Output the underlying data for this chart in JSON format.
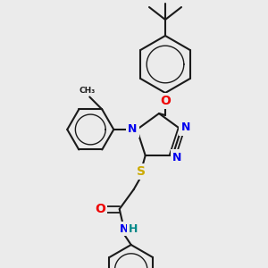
{
  "bg_color": "#ebebeb",
  "bond_color": "#1a1a1a",
  "bond_width": 1.5,
  "atom_colors": {
    "N": "#0000ee",
    "O": "#ee0000",
    "S": "#ccaa00",
    "C": "#1a1a1a",
    "H": "#008888",
    "NH": "#0000ee"
  },
  "font_size": 9
}
